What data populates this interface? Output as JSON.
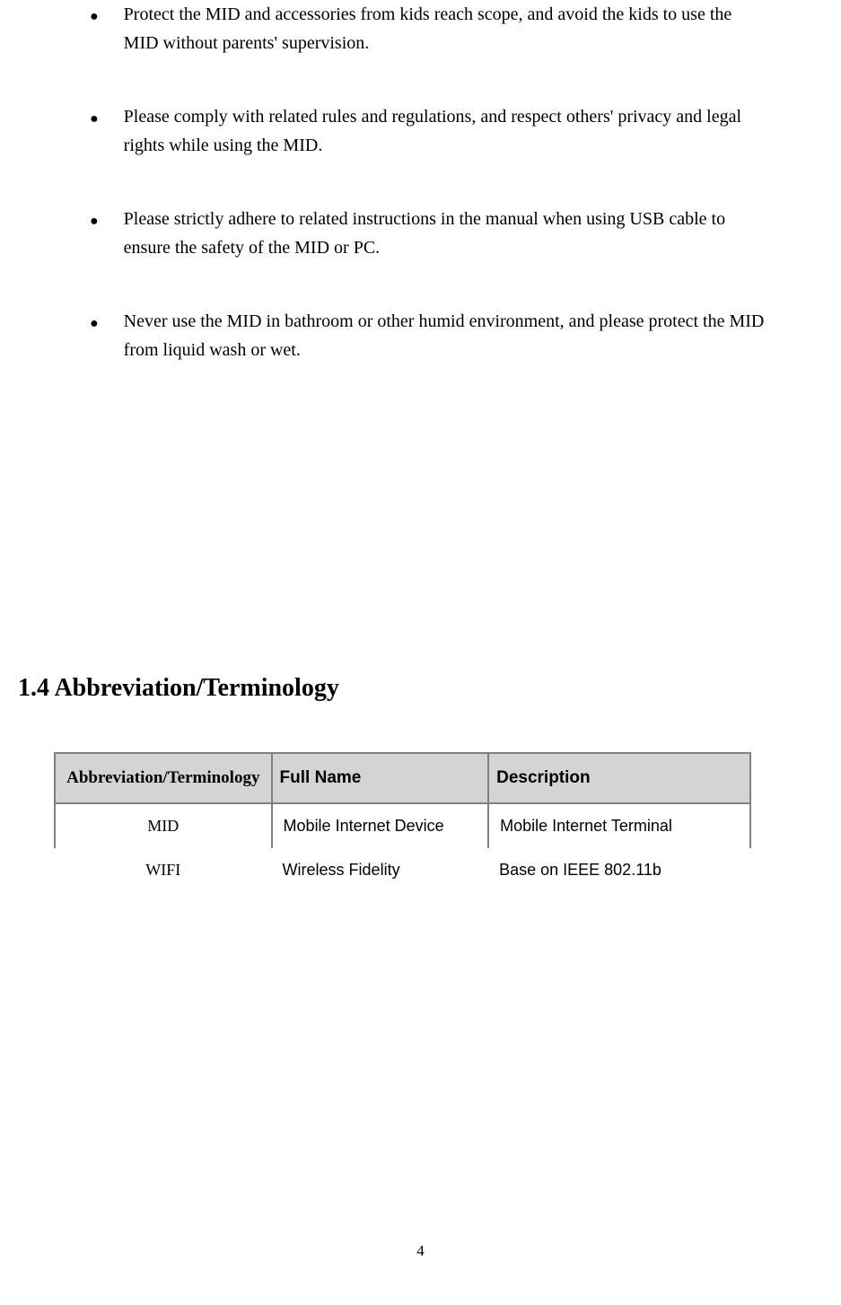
{
  "bullets": [
    "Protect the MID and accessories from kids reach scope, and avoid the kids to use the MID without parents' supervision.",
    "Please comply with related rules and regulations, and respect others' privacy and legal rights while using the MID.",
    "Please strictly adhere to related instructions in the manual when using USB cable to ensure the safety of the MID or PC.",
    "Never use the MID in bathroom or other humid environment, and please protect the MID from liquid wash or wet."
  ],
  "section_heading": "1.4 Abbreviation/Terminology",
  "table": {
    "headers": {
      "abbr": "Abbreviation/Terminology",
      "full": "Full Name",
      "desc": "Description"
    },
    "rows": [
      {
        "abbr": "MID",
        "full": "Mobile Internet Device",
        "desc": "Mobile Internet Terminal"
      },
      {
        "abbr": "WIFI",
        "full": "Wireless Fidelity",
        "desc": "Base on IEEE 802.11b"
      }
    ]
  },
  "page_number": "4",
  "colors": {
    "background": "#ffffff",
    "text": "#000000",
    "table_header_bg": "#d4d4d4",
    "table_border": "#808080"
  }
}
